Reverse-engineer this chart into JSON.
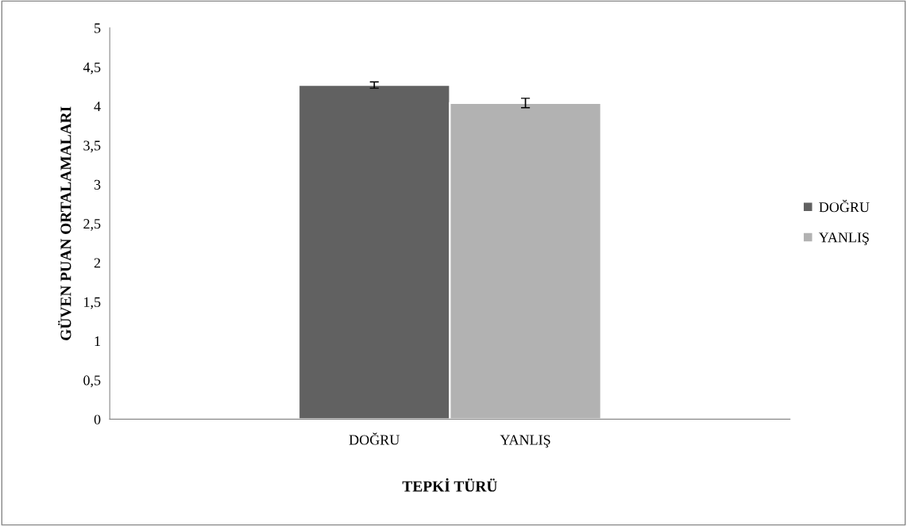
{
  "chart_data": {
    "type": "bar",
    "xlabel": "TEPKİ TÜRÜ",
    "ylabel": "GÜVEN PUAN ORTALAMALARI",
    "categories": [
      "DOĞRU",
      "YANLIŞ"
    ],
    "series": [
      {
        "name": "DOĞRU",
        "color": "#616161",
        "values": [
          4.27,
          null
        ],
        "errors": [
          0.04,
          null
        ]
      },
      {
        "name": "YANLIŞ",
        "color": "#b2b2b2",
        "values": [
          null,
          4.04
        ],
        "errors": [
          null,
          0.06
        ]
      }
    ],
    "ylim": [
      0,
      5
    ],
    "yticks": [
      0,
      {
        "value": 0.5,
        "label": "0,5"
      },
      1,
      {
        "value": 1.5,
        "label": "1,5"
      },
      2,
      {
        "value": 2.5,
        "label": "2,5"
      },
      3,
      {
        "value": 3.5,
        "label": "3,5"
      },
      4,
      {
        "value": 4.5,
        "label": "4,5"
      },
      5
    ],
    "grid": false,
    "legend": "right"
  }
}
